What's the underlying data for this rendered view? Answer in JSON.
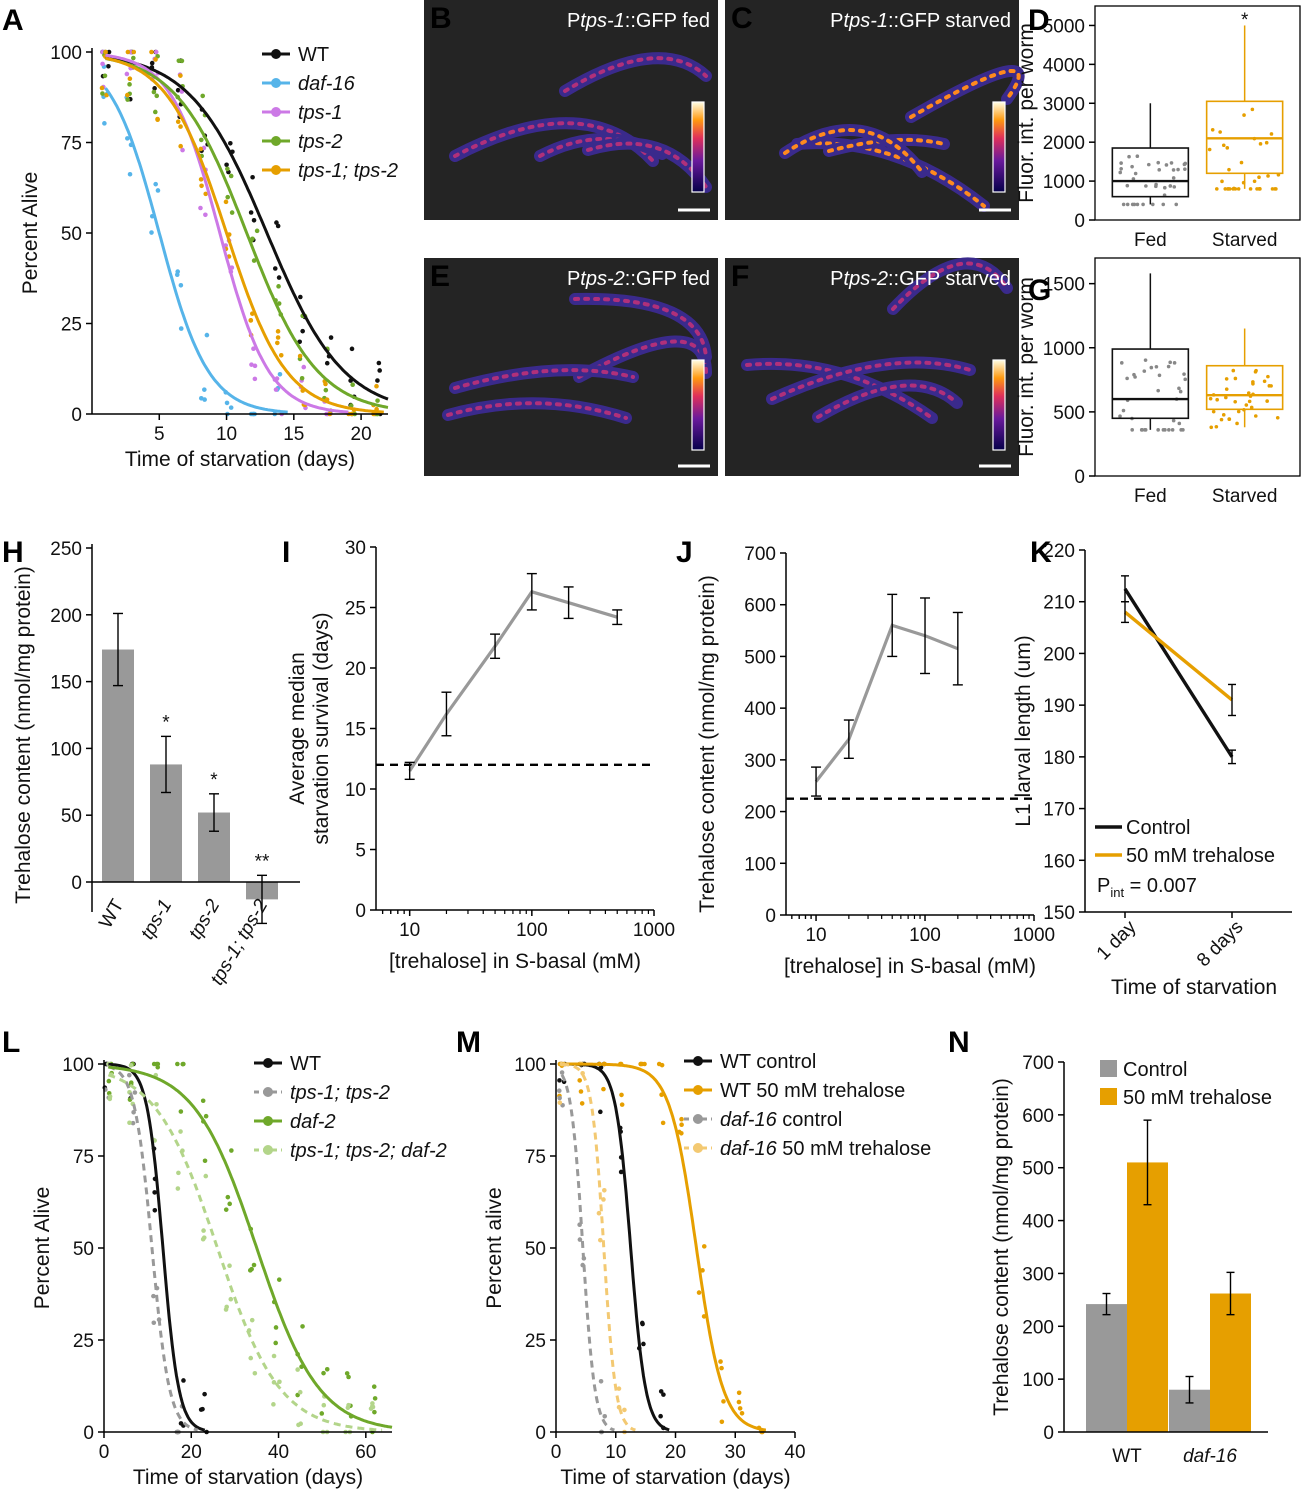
{
  "panel_labels": {
    "A": "A",
    "B": "B",
    "C": "C",
    "D": "D",
    "E": "E",
    "F": "F",
    "G": "G",
    "H": "H",
    "I": "I",
    "J": "J",
    "K": "K",
    "L": "L",
    "M": "M",
    "N": "N"
  },
  "colors": {
    "wt": "#111111",
    "daf16": "#56b4e9",
    "tps1": "#cc79e6",
    "tps2": "#6fa82a",
    "tps12": "#e69f00",
    "grey": "#999999",
    "lightgreen": "#b3d58a",
    "lightorange": "#f3c972",
    "orange": "#e69f00"
  },
  "images": {
    "B": {
      "label_prefix": "P",
      "label_gene": "tps-1",
      "label_suffix": "::GFP fed"
    },
    "C": {
      "label_prefix": "P",
      "label_gene": "tps-1",
      "label_suffix": "::GFP starved"
    },
    "E": {
      "label_prefix": "P",
      "label_gene": "tps-2",
      "label_suffix": "::GFP fed"
    },
    "F": {
      "label_prefix": "P",
      "label_gene": "tps-2",
      "label_suffix": "::GFP starved"
    }
  },
  "chart_data": [
    {
      "id": "A",
      "type": "line",
      "xlabel": "Time of starvation (days)",
      "ylabel": "Percent Alive",
      "xlim": [
        0,
        22
      ],
      "ylim": [
        0,
        100
      ],
      "xticks": [
        "5",
        "10",
        "15",
        "20"
      ],
      "yticks": [
        "0",
        "25",
        "50",
        "75",
        "100"
      ],
      "series": [
        {
          "name": "WT",
          "median": 13.0,
          "k": 0.35,
          "color_key": "wt"
        },
        {
          "name": "daf-16",
          "median": 5.0,
          "k": 0.55,
          "color_key": "daf16"
        },
        {
          "name": "tps-1",
          "median": 9.5,
          "k": 0.55,
          "color_key": "tps1"
        },
        {
          "name": "tps-2",
          "median": 11.5,
          "k": 0.38,
          "color_key": "tps2"
        },
        {
          "name": "tps-1; tps-2",
          "median": 10.0,
          "k": 0.45,
          "color_key": "tps12"
        }
      ]
    },
    {
      "id": "D",
      "type": "box",
      "ylabel": "Fluor. int. per worm",
      "ylim": [
        0,
        5500
      ],
      "yticks": [
        "0",
        "1000",
        "2000",
        "3000",
        "4000",
        "5000"
      ],
      "categories": [
        "Fed",
        "Starved"
      ],
      "boxes": [
        {
          "name": "Fed",
          "q1": 600,
          "median": 1000,
          "q3": 1850,
          "lo": 400,
          "hi": 3000,
          "color_key": "wt"
        },
        {
          "name": "Starved",
          "q1": 1200,
          "median": 2100,
          "q3": 3050,
          "lo": 800,
          "hi": 5000,
          "color_key": "orange"
        }
      ],
      "annotation": "*"
    },
    {
      "id": "G",
      "type": "box",
      "ylabel": "Fluor. int. per worm",
      "ylim": [
        0,
        1700
      ],
      "yticks": [
        "0",
        "500",
        "1000",
        "1500"
      ],
      "categories": [
        "Fed",
        "Starved"
      ],
      "boxes": [
        {
          "name": "Fed",
          "q1": 450,
          "median": 600,
          "q3": 990,
          "lo": 360,
          "hi": 1580,
          "color_key": "wt"
        },
        {
          "name": "Starved",
          "q1": 520,
          "median": 630,
          "q3": 860,
          "lo": 380,
          "hi": 1150,
          "color_key": "orange"
        }
      ]
    },
    {
      "id": "H",
      "type": "bar",
      "ylabel": "Trehalose content (nmol/mg protein)",
      "ylim": [
        -30,
        250
      ],
      "yticks": [
        "0",
        "50",
        "100",
        "150",
        "200",
        "250"
      ],
      "categories": [
        "WT",
        "tps-1",
        "tps-2",
        "tps-1; tps-2"
      ],
      "values": [
        174,
        88,
        52,
        -13
      ],
      "errors": [
        27,
        21,
        14,
        18
      ],
      "significance": [
        "",
        "*",
        "*",
        "**"
      ]
    },
    {
      "id": "I",
      "type": "line",
      "xscale": "log",
      "xlabel": "[trehalose] in S-basal (mM)",
      "ylabel": [
        "Average median",
        "starvation survival (days)"
      ],
      "xticks": [
        "10",
        "100",
        "1000"
      ],
      "ylim": [
        0,
        30
      ],
      "yticks": [
        "0",
        "5",
        "10",
        "15",
        "20",
        "25",
        "30"
      ],
      "x": [
        10,
        20,
        50,
        100,
        200,
        500
      ],
      "values": [
        11.5,
        16.2,
        21.8,
        26.3,
        25.4,
        24.2
      ],
      "errors": [
        0.7,
        1.8,
        1.0,
        1.5,
        1.3,
        0.6
      ],
      "baseline": 12
    },
    {
      "id": "J",
      "type": "line",
      "xscale": "log",
      "xlabel": "[trehalose] in S-basal (mM)",
      "ylabel": "Trehalose content (nmol/mg protein)",
      "xticks": [
        "10",
        "100",
        "1000"
      ],
      "ylim": [
        0,
        700
      ],
      "yticks": [
        "0",
        "100",
        "200",
        "300",
        "400",
        "500",
        "600",
        "700"
      ],
      "x": [
        10,
        20,
        50,
        100,
        200
      ],
      "values": [
        258,
        340,
        560,
        540,
        515
      ],
      "errors": [
        28,
        37,
        60,
        73,
        70
      ],
      "baseline": 225
    },
    {
      "id": "K",
      "type": "line",
      "ylabel": "L1 larval length (um)",
      "xlabel": "Time of starvation",
      "categories": [
        "1 day",
        "8 days"
      ],
      "ylim": [
        150,
        220
      ],
      "yticks": [
        "150",
        "160",
        "170",
        "180",
        "190",
        "200",
        "210",
        "220"
      ],
      "series": [
        {
          "name": "Control",
          "values": [
            212.5,
            180
          ],
          "errors": [
            2.5,
            1.3
          ],
          "color_key": "wt"
        },
        {
          "name": "50 mM trehalose",
          "values": [
            208,
            191
          ],
          "errors": [
            2,
            3
          ],
          "color_key": "orange"
        }
      ],
      "pval_label": "P",
      "pval_sub": "int",
      "pval_value": "= 0.007"
    },
    {
      "id": "L",
      "type": "line",
      "xlabel": "Time of starvation (days)",
      "ylabel": "Percent Alive",
      "xlim": [
        0,
        66
      ],
      "ylim": [
        0,
        100
      ],
      "xticks": [
        "0",
        "20",
        "40",
        "60"
      ],
      "yticks": [
        "0",
        "25",
        "50",
        "75",
        "100"
      ],
      "series": [
        {
          "name": "WT",
          "median": 13.5,
          "k": 0.55,
          "color_key": "wt",
          "dashed": false
        },
        {
          "name": "tps-1; tps-2",
          "median": 11.0,
          "k": 0.5,
          "color_key": "grey",
          "dashed": true
        },
        {
          "name": "daf-2",
          "median": 35.0,
          "k": 0.14,
          "color_key": "tps2",
          "dashed": false
        },
        {
          "name": "tps-1; tps-2; daf-2",
          "median": 26.0,
          "k": 0.14,
          "color_key": "lightgreen",
          "dashed": true
        }
      ]
    },
    {
      "id": "M",
      "type": "line",
      "xlabel": "Time of starvation (days)",
      "ylabel": "Percent alive",
      "xlim": [
        0,
        40
      ],
      "ylim": [
        0,
        100
      ],
      "xticks": [
        "0",
        "10",
        "20",
        "30",
        "40"
      ],
      "yticks": [
        "0",
        "25",
        "50",
        "75",
        "100"
      ],
      "series": [
        {
          "name": "WT control",
          "median": 12.5,
          "k": 0.8,
          "color_key": "wt",
          "dashed": false
        },
        {
          "name": "WT 50 mM trehalose",
          "median": 23.5,
          "k": 0.45,
          "color_key": "orange",
          "dashed": false
        },
        {
          "name": "daf-16 control",
          "median": 4.5,
          "k": 1.0,
          "color_key": "grey",
          "dashed": true
        },
        {
          "name": "daf-16 50 mM trehalose",
          "median": 8.0,
          "k": 1.0,
          "color_key": "lightorange",
          "dashed": true
        }
      ]
    },
    {
      "id": "N",
      "type": "bar",
      "ylabel": "Trehalose content (nmol/mg protein)",
      "ylim": [
        0,
        700
      ],
      "yticks": [
        "0",
        "100",
        "200",
        "300",
        "400",
        "500",
        "600",
        "700"
      ],
      "categories": [
        "WT",
        "daf-16"
      ],
      "series": [
        {
          "name": "Control",
          "values": [
            242,
            80
          ],
          "errors": [
            20,
            25
          ],
          "color_key": "grey"
        },
        {
          "name": "50 mM trehalose",
          "values": [
            510,
            262
          ],
          "errors": [
            80,
            40
          ],
          "color_key": "orange"
        }
      ]
    }
  ]
}
